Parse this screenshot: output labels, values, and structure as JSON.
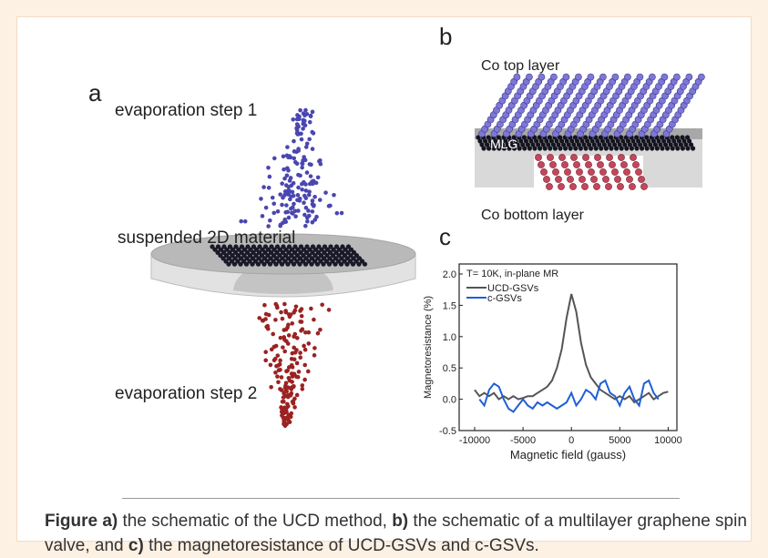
{
  "figure": {
    "panel_a": {
      "label": "a",
      "step1": "evaporation step 1",
      "material": "suspended 2D material",
      "step2": "evaporation step 2"
    },
    "panel_b": {
      "label": "b",
      "top": "Co top layer",
      "middle": "MLG",
      "bottom": "Co bottom layer"
    },
    "panel_c": {
      "label": "c"
    }
  },
  "chart_data": {
    "type": "line",
    "annotation": "T= 10K, in-plane MR",
    "xlabel": "Magnetic field (gauss)",
    "ylabel": "Magnetoresistance (%)",
    "xlim": [
      -11600,
      10900
    ],
    "ylim": [
      -0.5,
      2.16
    ],
    "xticks": [
      -10000,
      -5000,
      0,
      5000,
      10000
    ],
    "yticks": [
      -0.5,
      {
        "value": 0,
        "label": "0.0"
      },
      0.5,
      {
        "value": 1,
        "label": "1.0"
      },
      1.5,
      {
        "value": 2,
        "label": "2.0"
      }
    ],
    "x": [
      -10000,
      -9500,
      -9000,
      -8500,
      -8000,
      -7500,
      -7000,
      -6500,
      -6000,
      -5500,
      -5000,
      -4500,
      -4000,
      -3500,
      -3000,
      -2500,
      -2000,
      -1500,
      -1000,
      -500,
      0,
      500,
      1000,
      1500,
      2000,
      2500,
      3000,
      3500,
      4000,
      4500,
      5000,
      5500,
      6000,
      6500,
      7000,
      7500,
      8000,
      8500,
      9000,
      9500,
      10000
    ],
    "series": [
      {
        "name": "UCD-GSVs",
        "color": "#555555",
        "values": [
          0.15,
          0.05,
          0.1,
          0.05,
          0.1,
          0.0,
          0.05,
          0.0,
          0.05,
          0.0,
          0.02,
          0.05,
          0.05,
          0.1,
          0.15,
          0.2,
          0.3,
          0.5,
          0.8,
          1.3,
          1.68,
          1.4,
          0.9,
          0.55,
          0.35,
          0.25,
          0.15,
          0.1,
          0.05,
          0.0,
          0.05,
          0.0,
          0.05,
          -0.05,
          0.0,
          0.05,
          0.1,
          0.0,
          0.05,
          0.1,
          0.12
        ]
      },
      {
        "name": "c-GSVs",
        "color": "#1f5fd6",
        "values": [
          null,
          0.0,
          -0.1,
          0.15,
          0.25,
          0.2,
          0.0,
          -0.15,
          -0.2,
          -0.1,
          0.0,
          -0.1,
          -0.15,
          -0.05,
          -0.1,
          -0.05,
          -0.1,
          -0.15,
          -0.1,
          -0.05,
          0.1,
          -0.1,
          0.0,
          0.15,
          0.1,
          0.0,
          0.25,
          0.3,
          0.1,
          0.05,
          -0.1,
          0.1,
          0.2,
          0.0,
          -0.1,
          0.25,
          0.3,
          0.1,
          0.0,
          null,
          null
        ]
      }
    ]
  },
  "caption": {
    "segments": [
      {
        "text": "Figure a)",
        "bold": true
      },
      {
        "text": " the schematic of the UCD method, ",
        "bold": false
      },
      {
        "text": "b)",
        "bold": true
      },
      {
        "text": " the schematic of a multilayer graphene spin valve, and ",
        "bold": false
      },
      {
        "text": "c)",
        "bold": true
      },
      {
        "text": " the magnetoresistance of UCD-GSVs and c-GSVs.",
        "bold": false
      }
    ]
  }
}
